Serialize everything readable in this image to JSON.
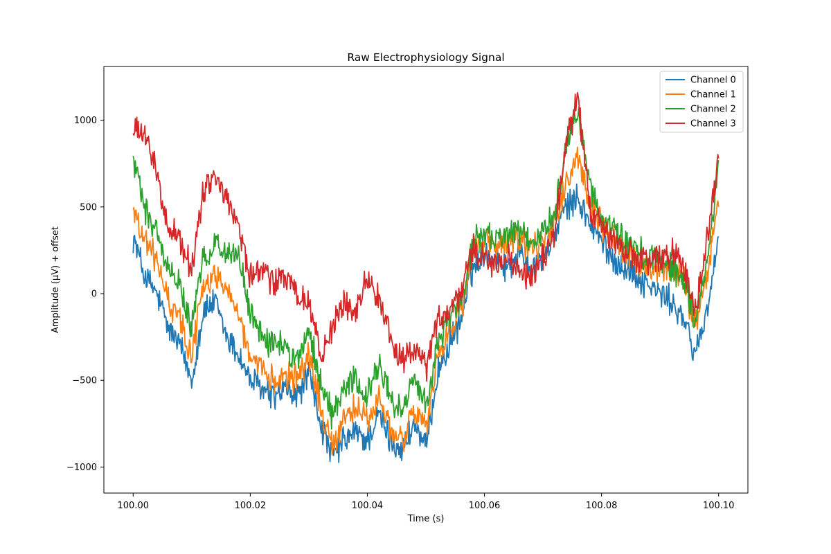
{
  "chart_data": {
    "type": "line",
    "title": "Raw Electrophysiology Signal",
    "xlabel": "Time (s)",
    "ylabel": "Amplitude (µV) + offset",
    "xlim": [
      99.995,
      100.105
    ],
    "ylim": [
      -1150,
      1310
    ],
    "xticks": [
      100.0,
      100.02,
      100.04,
      100.06,
      100.08,
      100.1
    ],
    "xtick_labels": [
      "100.00",
      "100.02",
      "100.04",
      "100.06",
      "100.08",
      "100.10"
    ],
    "yticks": [
      -1000,
      -500,
      0,
      500,
      1000
    ],
    "ytick_labels": [
      "−1000",
      "−500",
      "0",
      "500",
      "1000"
    ],
    "legend_position": "top-right",
    "grid": false,
    "x": [
      100.0,
      100.002,
      100.004,
      100.006,
      100.008,
      100.01,
      100.012,
      100.014,
      100.016,
      100.018,
      100.02,
      100.022,
      100.024,
      100.026,
      100.028,
      100.03,
      100.032,
      100.034,
      100.036,
      100.038,
      100.04,
      100.042,
      100.044,
      100.046,
      100.048,
      100.05,
      100.052,
      100.054,
      100.056,
      100.058,
      100.06,
      100.062,
      100.064,
      100.066,
      100.068,
      100.07,
      100.072,
      100.074,
      100.076,
      100.078,
      100.08,
      100.082,
      100.084,
      100.086,
      100.088,
      100.09,
      100.092,
      100.094,
      100.096,
      100.098,
      100.1
    ],
    "series": [
      {
        "name": "Channel 0",
        "color": "#1f77b4",
        "values": [
          330,
          100,
          0,
          -200,
          -300,
          -500,
          -100,
          -50,
          -250,
          -350,
          -500,
          -550,
          -600,
          -550,
          -600,
          -450,
          -750,
          -950,
          -850,
          -800,
          -850,
          -700,
          -850,
          -900,
          -750,
          -900,
          -450,
          -300,
          -150,
          150,
          250,
          200,
          150,
          250,
          150,
          200,
          350,
          500,
          550,
          400,
          300,
          200,
          150,
          100,
          50,
          0,
          -50,
          -150,
          -350,
          -100,
          330
        ]
      },
      {
        "name": "Channel 1",
        "color": "#ff7f0e",
        "values": [
          490,
          300,
          200,
          -50,
          -150,
          -350,
          50,
          100,
          50,
          -100,
          -400,
          -450,
          -500,
          -450,
          -500,
          -350,
          -650,
          -900,
          -700,
          -650,
          -750,
          -600,
          -800,
          -850,
          -650,
          -800,
          -350,
          -200,
          -100,
          250,
          300,
          250,
          300,
          300,
          250,
          300,
          400,
          650,
          800,
          500,
          400,
          300,
          250,
          200,
          150,
          150,
          150,
          100,
          -200,
          100,
          500
        ]
      },
      {
        "name": "Channel 2",
        "color": "#2ca02c",
        "values": [
          770,
          500,
          350,
          150,
          50,
          -200,
          200,
          300,
          250,
          200,
          -100,
          -250,
          -300,
          -300,
          -400,
          -200,
          -500,
          -700,
          -550,
          -500,
          -600,
          -400,
          -600,
          -700,
          -500,
          -650,
          -300,
          -150,
          -50,
          300,
          350,
          300,
          350,
          350,
          300,
          350,
          450,
          850,
          1050,
          600,
          450,
          350,
          300,
          250,
          200,
          200,
          150,
          100,
          -150,
          150,
          770
        ]
      },
      {
        "name": "Channel 3",
        "color": "#d62728",
        "values": [
          950,
          900,
          700,
          400,
          300,
          150,
          600,
          650,
          550,
          400,
          100,
          150,
          50,
          100,
          0,
          -50,
          -350,
          -200,
          -50,
          -100,
          100,
          -50,
          -250,
          -400,
          -300,
          -450,
          -150,
          -100,
          0,
          250,
          200,
          150,
          200,
          150,
          100,
          200,
          350,
          900,
          1100,
          500,
          400,
          300,
          250,
          200,
          200,
          200,
          250,
          150,
          -100,
          300,
          780
        ]
      }
    ]
  }
}
